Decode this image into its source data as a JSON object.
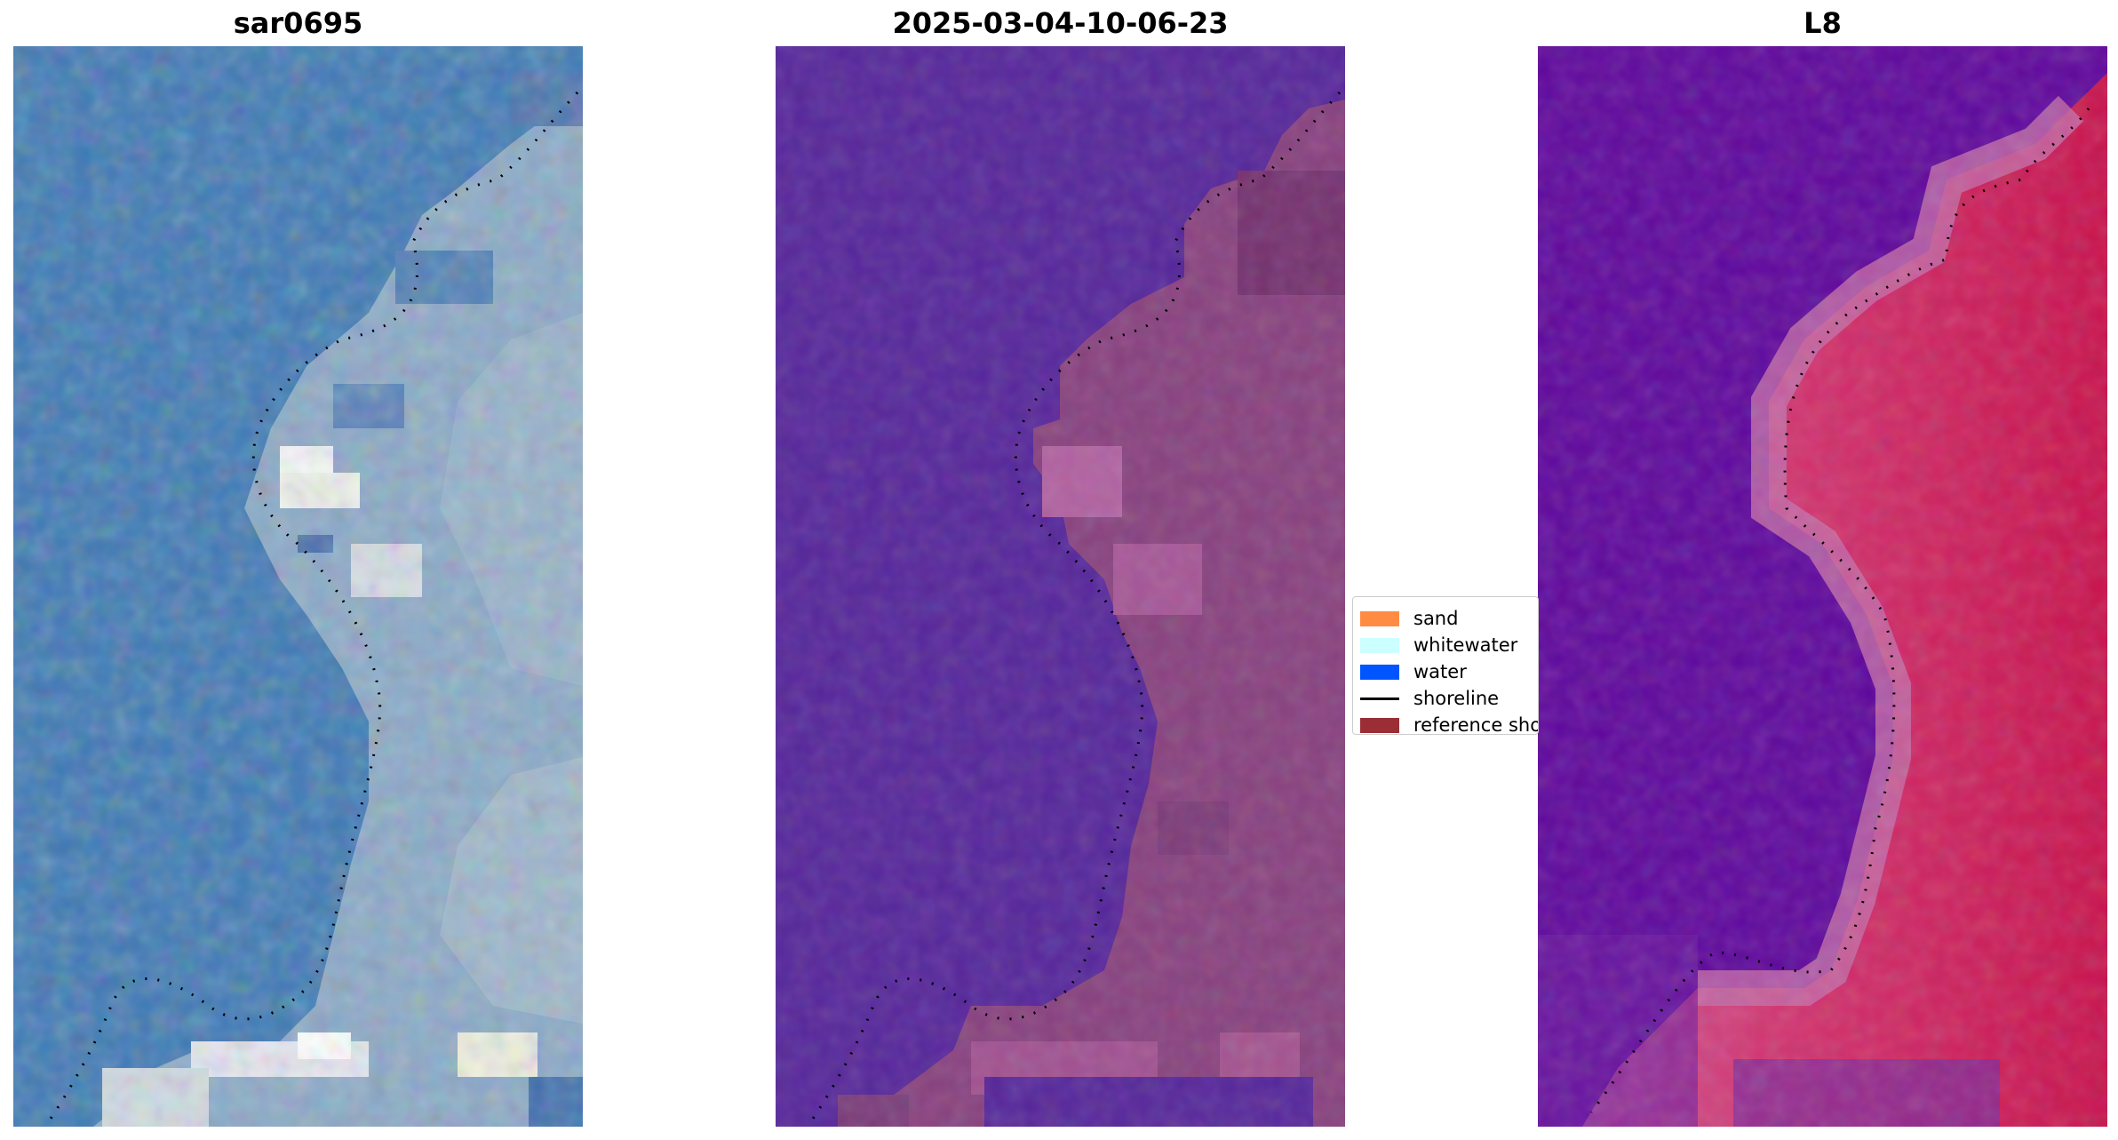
{
  "panels": [
    {
      "title": "sar0695",
      "variant": "rgb"
    },
    {
      "title": "2025-03-04-10-06-23",
      "variant": "classified"
    },
    {
      "title": "L8",
      "variant": "index"
    }
  ],
  "legend": {
    "entries": [
      {
        "label": "sand",
        "kind": "patch",
        "color": "#ff8c42"
      },
      {
        "label": "whitewater",
        "kind": "patch",
        "color": "#ccffff"
      },
      {
        "label": "water",
        "kind": "patch",
        "color": "#0055ff"
      },
      {
        "label": "shoreline",
        "kind": "line",
        "color": "#000000"
      },
      {
        "label": "reference shoreline",
        "kind": "patch",
        "color": "#9b2d35"
      }
    ]
  },
  "colors": {
    "rgb_water": "#3d79b5",
    "classified_water": "#55259a",
    "classified_land": "#87407e",
    "index_water": "#5e069c",
    "index_land": "#cc1855"
  }
}
